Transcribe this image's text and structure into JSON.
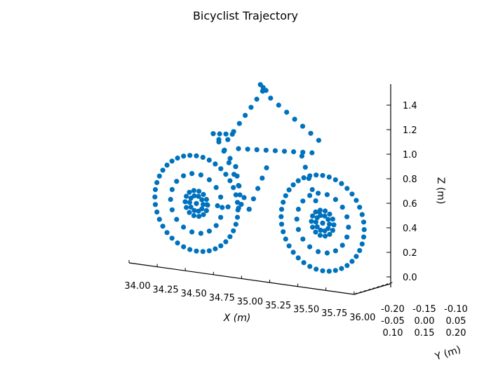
{
  "chart_data": {
    "type": "scatter",
    "title": "Bicyclist Trajectory",
    "xlabel": "X (m)",
    "ylabel": "Y (m)",
    "zlabel": "Z (m)",
    "xlim": [
      34.0,
      36.0
    ],
    "zlim": [
      0.0,
      1.5
    ],
    "x_ticks": [
      "34.00",
      "34.25",
      "34.50",
      "34.75",
      "35.00",
      "35.25",
      "35.50",
      "35.75",
      "36.00"
    ],
    "y_ticks": [
      "-0.20",
      "-0.15",
      "-0.10",
      "-0.05",
      "0.00",
      "0.05",
      "0.10",
      "0.15",
      "0.20"
    ],
    "z_ticks": [
      "0.0",
      "0.2",
      "0.4",
      "0.6",
      "0.8",
      "1.0",
      "1.2",
      "1.4"
    ],
    "z_tick_values": [
      0.0,
      0.2,
      0.4,
      0.6,
      0.8,
      1.0,
      1.2,
      1.4
    ],
    "color": "#0072BD",
    "wheels": [
      {
        "name": "rear-wheel",
        "x": 34.6,
        "z": 0.37,
        "rings": [
          {
            "r": 0.37,
            "n": 40
          },
          {
            "r": 0.23,
            "n": 18
          },
          {
            "r": 0.1,
            "n": 14
          },
          {
            "r": 0.06,
            "n": 10
          },
          {
            "r": 0,
            "n": 1
          }
        ]
      },
      {
        "name": "front-wheel",
        "x": 35.725,
        "z": 0.37,
        "rings": [
          {
            "r": 0.37,
            "n": 40
          },
          {
            "r": 0.23,
            "n": 18
          },
          {
            "r": 0.1,
            "n": 14
          },
          {
            "r": 0.06,
            "n": 10
          },
          {
            "r": 0,
            "n": 1
          }
        ]
      }
    ],
    "segments": [
      {
        "name": "torso",
        "from": [
          34.88,
          0.93
        ],
        "to": [
          35.19,
          1.37
        ],
        "n": 7
      },
      {
        "name": "arm",
        "from": [
          35.19,
          1.37
        ],
        "to": [
          35.69,
          1.04
        ],
        "n": 8
      },
      {
        "name": "top-tube",
        "from": [
          34.975,
          0.87
        ],
        "to": [
          35.63,
          0.93
        ],
        "n": 9
      },
      {
        "name": "fork",
        "from": [
          35.54,
          0.89
        ],
        "to": [
          35.725,
          0.37
        ],
        "n": 7
      },
      {
        "name": "down-tube",
        "from": [
          35.225,
          0.75
        ],
        "to": [
          35.07,
          0.39
        ],
        "n": 5
      },
      {
        "name": "chain-stay",
        "from": [
          35.07,
          0.39
        ],
        "to": [
          34.6,
          0.37
        ],
        "n": 6
      },
      {
        "name": "seat-tube",
        "from": [
          34.8,
          0.92
        ],
        "to": [
          35.07,
          0.39
        ],
        "n": 7
      },
      {
        "name": "thigh",
        "from": [
          34.75,
          0.96
        ],
        "to": [
          34.95,
          0.72
        ],
        "n": 5
      },
      {
        "name": "shin",
        "from": [
          34.95,
          0.72
        ],
        "to": [
          35.0,
          0.42
        ],
        "n": 5
      },
      {
        "name": "seat",
        "from": [
          34.75,
          0.96
        ],
        "to": [
          34.92,
          0.98
        ],
        "n": 4
      },
      {
        "name": "head",
        "from": [
          35.17,
          1.42
        ],
        "to": [
          35.22,
          1.38
        ],
        "n": 3
      }
    ]
  }
}
